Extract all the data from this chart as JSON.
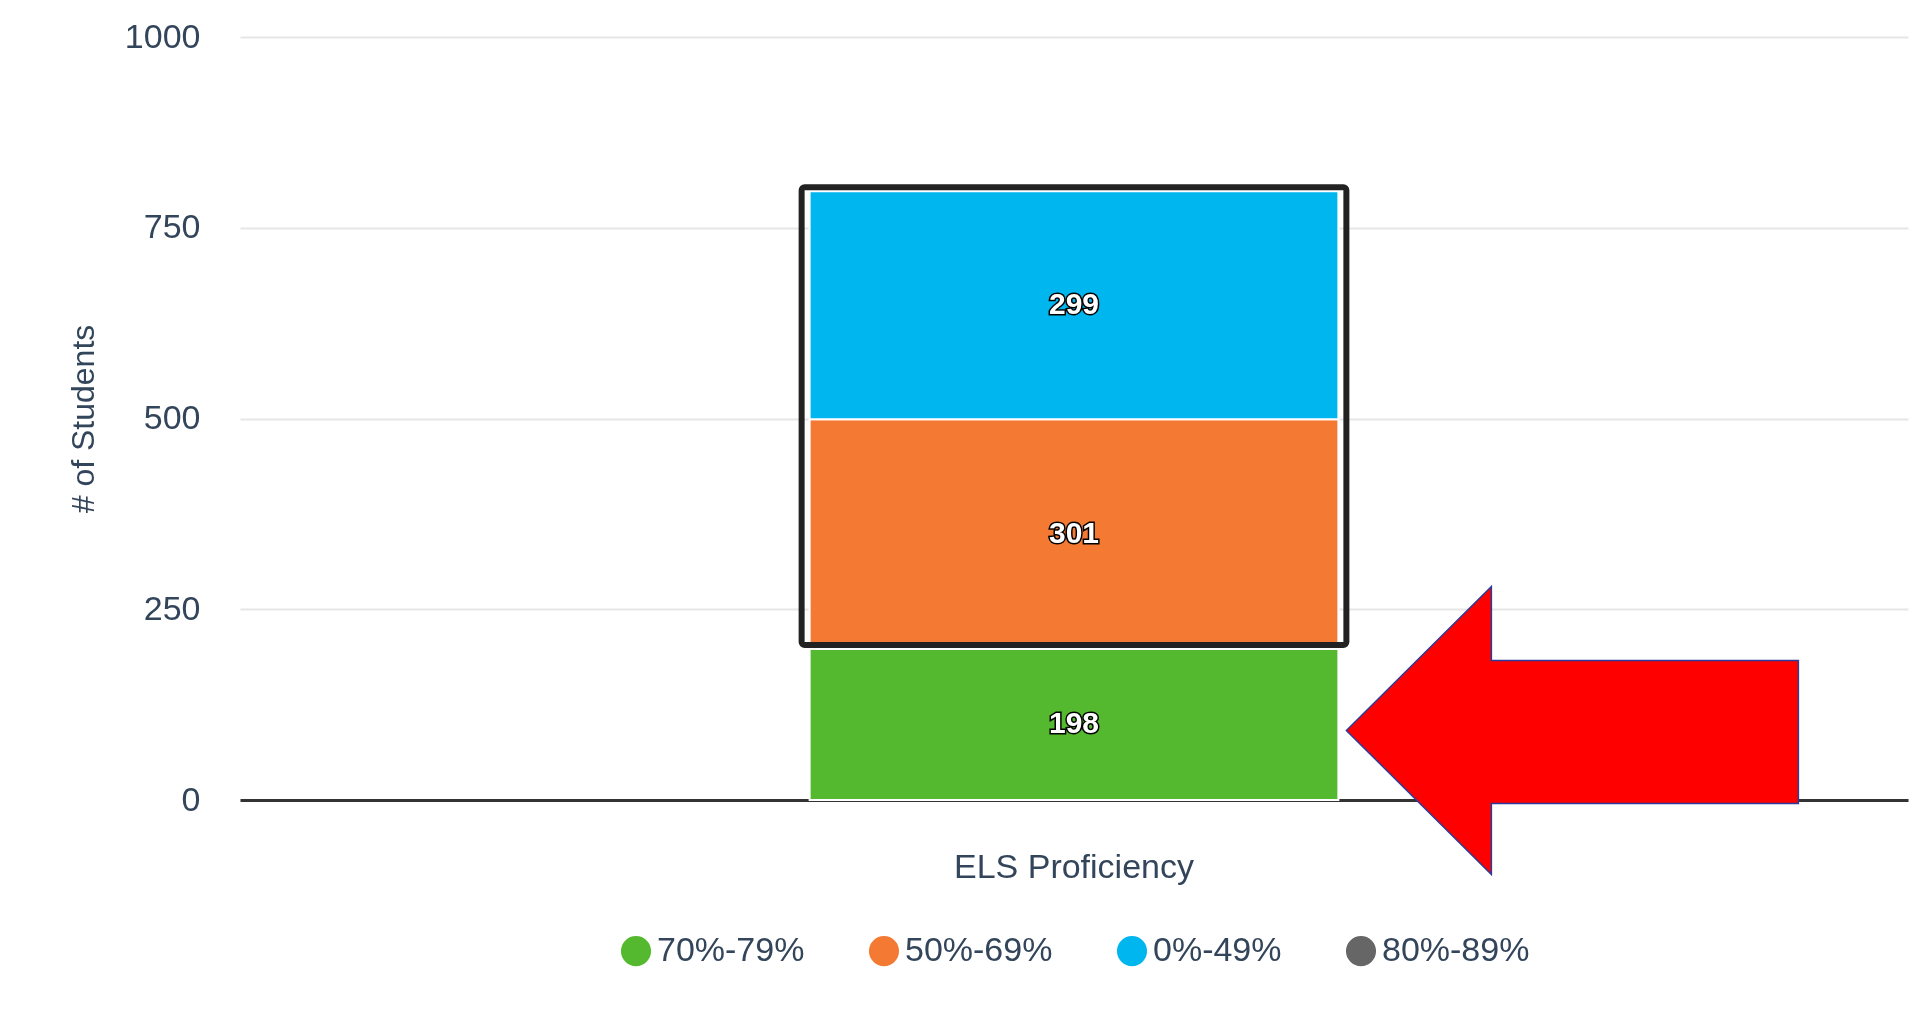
{
  "chart_data": {
    "type": "bar",
    "stacked": true,
    "ylabel": "# of Students",
    "categories": [
      "ELS Proficiency"
    ],
    "series": [
      {
        "name": "70%-79%",
        "color": "#55b92f",
        "values": [
          198
        ]
      },
      {
        "name": "50%-69%",
        "color": "#f47a33",
        "values": [
          301
        ]
      },
      {
        "name": "0%-49%",
        "color": "#00b6ef",
        "values": [
          299
        ]
      },
      {
        "name": "80%-89%",
        "color": "#666666",
        "values": [
          null
        ]
      }
    ],
    "ylim": [
      0,
      1000
    ],
    "yticks": [
      0,
      250,
      500,
      750,
      1000
    ],
    "grid": "y",
    "legend": "bottom",
    "data_labels": true
  }
}
